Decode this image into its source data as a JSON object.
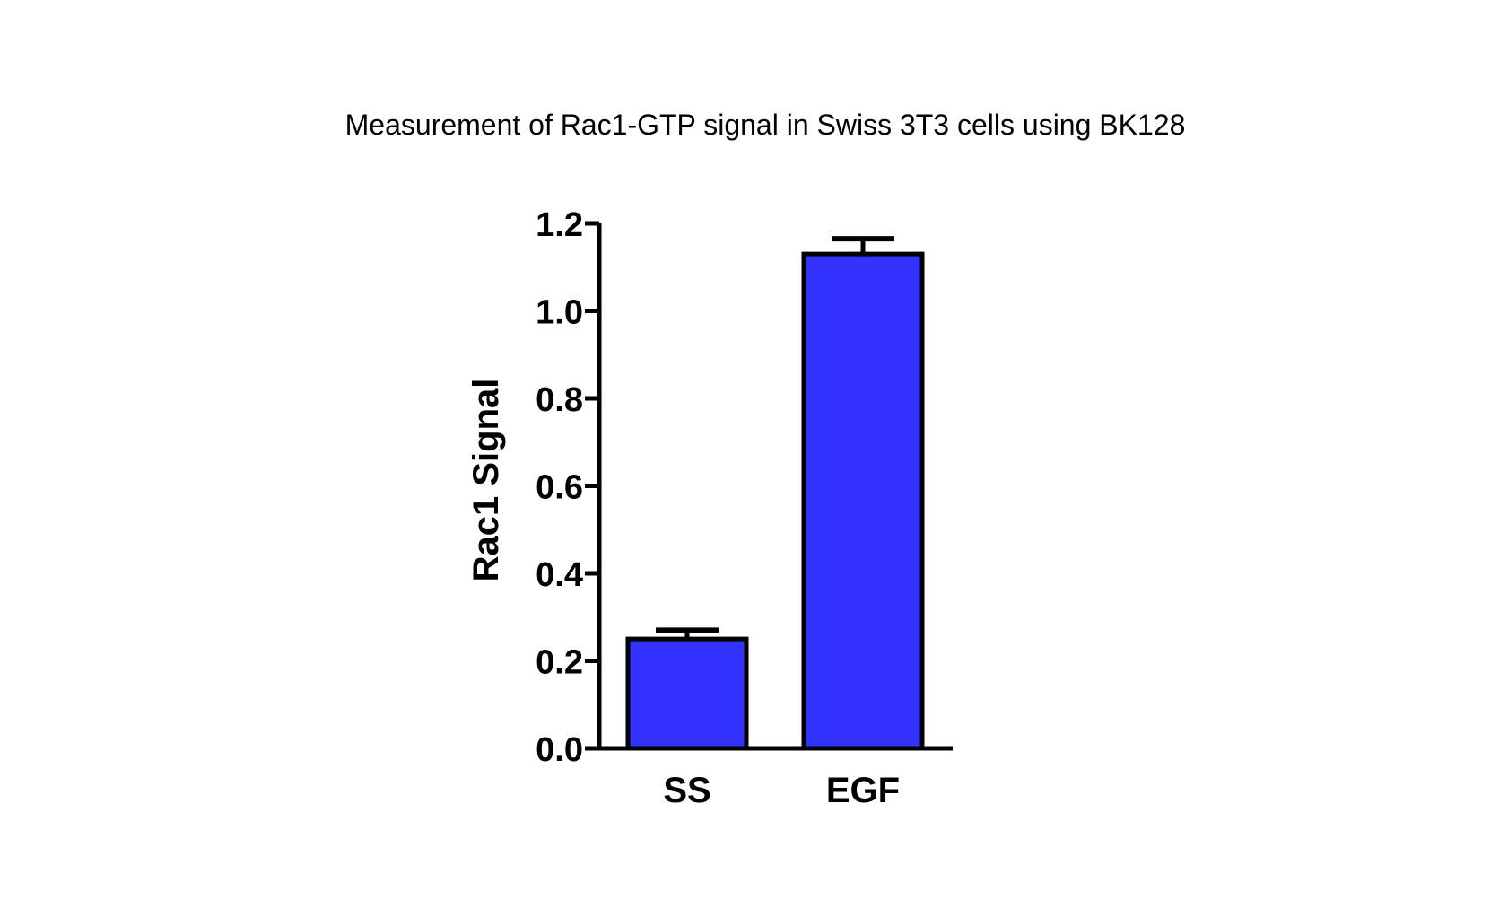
{
  "chart_data": {
    "type": "bar",
    "title": "Measurement of Rac1-GTP signal in Swiss 3T3 cells using BK128",
    "xlabel": "",
    "ylabel": "Rac1 Signal",
    "categories": [
      "SS",
      "EGF"
    ],
    "values": [
      0.25,
      1.13
    ],
    "error": [
      0.02,
      0.035
    ],
    "ylim": [
      0.0,
      1.2
    ],
    "yticks": [
      0.0,
      0.2,
      0.4,
      0.6,
      0.8,
      1.0,
      1.2
    ],
    "ytick_labels": [
      "0.0",
      "0.2",
      "0.4",
      "0.6",
      "0.8",
      "1.0",
      "1.2"
    ],
    "grid": false,
    "bar_color": "#3333ff",
    "edge_color": "#000000"
  }
}
